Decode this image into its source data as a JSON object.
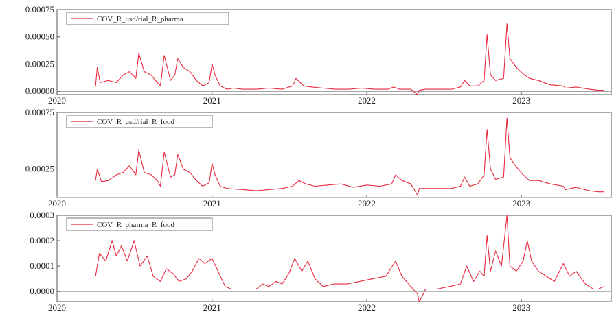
{
  "chart_data": [
    {
      "type": "line",
      "series": [
        {
          "name": "COV_R_usd/rial_R_pharma",
          "color": "#e8283c",
          "x": [
            "2020-04-01",
            "2020-04-05",
            "2020-04-12",
            "2020-05-01",
            "2020-05-20",
            "2020-06-05",
            "2020-06-20",
            "2020-07-05",
            "2020-07-12",
            "2020-07-25",
            "2020-08-10",
            "2020-08-25",
            "2020-09-01",
            "2020-09-10",
            "2020-09-25",
            "2020-10-05",
            "2020-10-12",
            "2020-10-25",
            "2020-11-10",
            "2020-11-25",
            "2020-12-10",
            "2020-12-25",
            "2021-01-01",
            "2021-01-08",
            "2021-01-20",
            "2021-02-05",
            "2021-02-20",
            "2021-03-15",
            "2021-04-15",
            "2021-05-15",
            "2021-06-15",
            "2021-07-10",
            "2021-07-18",
            "2021-08-05",
            "2021-08-25",
            "2021-09-20",
            "2021-10-20",
            "2021-11-20",
            "2021-12-20",
            "2022-01-20",
            "2022-02-20",
            "2022-03-05",
            "2022-03-20",
            "2022-04-15",
            "2022-05-01",
            "2022-05-05",
            "2022-05-20",
            "2022-06-20",
            "2022-07-20",
            "2022-08-10",
            "2022-08-20",
            "2022-09-01",
            "2022-09-20",
            "2022-10-05",
            "2022-10-12",
            "2022-10-20",
            "2022-11-01",
            "2022-11-20",
            "2022-11-28",
            "2022-12-05",
            "2022-12-20",
            "2023-01-05",
            "2023-01-20",
            "2023-02-10",
            "2023-03-10",
            "2023-04-10",
            "2023-04-15",
            "2023-05-10",
            "2023-06-10",
            "2023-07-01",
            "2023-07-15"
          ],
          "values": [
            5e-05,
            0.00022,
            8e-05,
            0.0001,
            8e-05,
            0.00015,
            0.00018,
            0.00012,
            0.00035,
            0.00018,
            0.00015,
            8e-05,
            5e-05,
            0.00033,
            0.0001,
            0.00015,
            0.0003,
            0.00022,
            0.00018,
            0.0001,
            5e-05,
            8e-05,
            0.00025,
            0.00015,
            5e-05,
            2e-05,
            3e-05,
            2e-05,
            2e-05,
            3e-05,
            2e-05,
            5e-05,
            0.00012,
            5e-05,
            4e-05,
            3e-05,
            2e-05,
            2e-05,
            3e-05,
            2e-05,
            2e-05,
            4e-05,
            2e-05,
            2e-05,
            -3e-05,
            1e-05,
            2e-05,
            2e-05,
            2e-05,
            4e-05,
            0.0001,
            5e-05,
            5e-05,
            0.0001,
            0.00052,
            0.00015,
            0.0001,
            0.00012,
            0.00062,
            0.0003,
            0.00022,
            0.00016,
            0.00012,
            0.0001,
            6e-05,
            5e-05,
            3e-05,
            4e-05,
            2e-05,
            1e-05,
            1e-05
          ]
        }
      ],
      "yticks": [
        "0.00000",
        "0.00025",
        "0.00050",
        "0.00075"
      ],
      "ylim": [
        -3e-05,
        0.00075
      ],
      "xticks": [
        "2020",
        "2021",
        "2022",
        "2023"
      ],
      "zero_line": true,
      "legend": "top-left"
    },
    {
      "type": "line",
      "series": [
        {
          "name": "COV_R_usd/rial_R_food",
          "color": "#e8283c",
          "x": [
            "2020-04-01",
            "2020-04-05",
            "2020-04-15",
            "2020-05-01",
            "2020-05-20",
            "2020-06-05",
            "2020-06-20",
            "2020-07-05",
            "2020-07-12",
            "2020-07-25",
            "2020-08-10",
            "2020-08-25",
            "2020-09-01",
            "2020-09-10",
            "2020-09-25",
            "2020-10-05",
            "2020-10-12",
            "2020-10-25",
            "2020-11-10",
            "2020-11-25",
            "2020-12-10",
            "2020-12-25",
            "2021-01-01",
            "2021-01-08",
            "2021-01-20",
            "2021-02-05",
            "2021-03-15",
            "2021-04-15",
            "2021-05-15",
            "2021-06-15",
            "2021-07-10",
            "2021-07-25",
            "2021-08-10",
            "2021-09-01",
            "2021-10-01",
            "2021-11-01",
            "2021-12-01",
            "2022-01-01",
            "2022-02-01",
            "2022-03-01",
            "2022-03-10",
            "2022-03-25",
            "2022-04-15",
            "2022-05-01",
            "2022-05-05",
            "2022-05-20",
            "2022-06-20",
            "2022-07-20",
            "2022-08-10",
            "2022-08-20",
            "2022-09-01",
            "2022-09-20",
            "2022-10-05",
            "2022-10-12",
            "2022-10-20",
            "2022-11-01",
            "2022-11-20",
            "2022-11-28",
            "2022-12-05",
            "2022-12-20",
            "2023-01-05",
            "2023-01-20",
            "2023-02-10",
            "2023-03-10",
            "2023-04-10",
            "2023-04-15",
            "2023-05-10",
            "2023-06-10",
            "2023-07-01",
            "2023-07-15"
          ],
          "values": [
            0.00015,
            0.00025,
            0.00014,
            0.00015,
            0.0002,
            0.00022,
            0.00028,
            0.0002,
            0.00042,
            0.00022,
            0.0002,
            0.00015,
            0.0001,
            0.0004,
            0.00018,
            0.0002,
            0.00038,
            0.00025,
            0.00022,
            0.00015,
            0.0001,
            0.00013,
            0.0003,
            0.0002,
            0.0001,
            8e-05,
            7e-05,
            6e-05,
            7e-05,
            8e-05,
            0.0001,
            0.00015,
            0.00012,
            0.0001,
            0.00011,
            0.00012,
            9e-05,
            0.00011,
            0.0001,
            0.00012,
            0.0002,
            0.00015,
            0.00012,
            2e-05,
            8e-05,
            8e-05,
            8e-05,
            8e-05,
            0.0001,
            0.00018,
            0.0001,
            0.00012,
            0.0002,
            0.0006,
            0.00025,
            0.00016,
            0.00018,
            0.0007,
            0.00035,
            0.00027,
            0.0002,
            0.00015,
            0.00015,
            0.00012,
            0.0001,
            7e-05,
            9e-05,
            6e-05,
            5e-05,
            5e-05
          ]
        }
      ],
      "yticks": [
        "0.00025",
        "0.00075"
      ],
      "ylim": [
        0.0,
        0.00075
      ],
      "xticks": [
        "2020",
        "2021",
        "2022",
        "2023"
      ],
      "zero_line": true,
      "legend": "top-left"
    },
    {
      "type": "line",
      "series": [
        {
          "name": "COV_R_pharma_R_food",
          "color": "#e8283c",
          "x": [
            "2020-04-01",
            "2020-04-10",
            "2020-04-25",
            "2020-05-10",
            "2020-05-20",
            "2020-06-01",
            "2020-06-15",
            "2020-07-01",
            "2020-07-15",
            "2020-08-01",
            "2020-08-15",
            "2020-09-01",
            "2020-09-15",
            "2020-10-01",
            "2020-10-15",
            "2020-11-01",
            "2020-11-15",
            "2020-12-01",
            "2020-12-15",
            "2021-01-01",
            "2021-01-15",
            "2021-02-01",
            "2021-02-15",
            "2021-03-15",
            "2021-04-15",
            "2021-05-01",
            "2021-05-15",
            "2021-06-01",
            "2021-06-15",
            "2021-07-01",
            "2021-07-15",
            "2021-08-01",
            "2021-08-15",
            "2021-09-01",
            "2021-09-20",
            "2021-10-15",
            "2021-11-15",
            "2021-12-15",
            "2022-01-15",
            "2022-02-15",
            "2022-03-10",
            "2022-03-25",
            "2022-04-15",
            "2022-05-01",
            "2022-05-05",
            "2022-05-20",
            "2022-06-15",
            "2022-07-15",
            "2022-08-10",
            "2022-08-25",
            "2022-09-10",
            "2022-09-25",
            "2022-10-05",
            "2022-10-12",
            "2022-10-20",
            "2022-11-01",
            "2022-11-15",
            "2022-11-28",
            "2022-12-05",
            "2022-12-20",
            "2023-01-05",
            "2023-01-15",
            "2023-01-25",
            "2023-02-10",
            "2023-03-01",
            "2023-03-20",
            "2023-04-10",
            "2023-04-25",
            "2023-05-10",
            "2023-06-01",
            "2023-06-20",
            "2023-07-01",
            "2023-07-15"
          ],
          "values": [
            6e-05,
            0.00015,
            0.00012,
            0.0002,
            0.00014,
            0.00018,
            0.00012,
            0.0002,
            0.0001,
            0.00014,
            6e-05,
            4e-05,
            9e-05,
            7e-05,
            4e-05,
            5e-05,
            8e-05,
            0.00013,
            0.00011,
            0.00013,
            8e-05,
            2e-05,
            1e-05,
            1e-05,
            1e-05,
            3e-05,
            2e-05,
            4e-05,
            3e-05,
            7e-05,
            0.00013,
            8e-05,
            0.00012,
            5e-05,
            2e-05,
            3e-05,
            3e-05,
            4e-05,
            5e-05,
            6e-05,
            0.00012,
            6e-05,
            2e-05,
            -1e-05,
            -4e-05,
            1e-05,
            1e-05,
            2e-05,
            3e-05,
            0.0001,
            4e-05,
            8e-05,
            6e-05,
            0.00022,
            8e-05,
            0.00016,
            0.0001,
            0.0003,
            0.0001,
            8e-05,
            0.00012,
            0.0002,
            0.00012,
            8e-05,
            6e-05,
            4e-05,
            0.00011,
            6e-05,
            8e-05,
            3e-05,
            1e-05,
            1e-05,
            2e-05
          ]
        }
      ],
      "yticks": [
        "0.0000",
        "0.0001",
        "0.0002",
        "0.0003"
      ],
      "ylim": [
        -4e-05,
        0.0003
      ],
      "xticks": [
        "2020",
        "2021",
        "2022",
        "2023"
      ],
      "zero_line": true,
      "legend": "top-left"
    }
  ]
}
